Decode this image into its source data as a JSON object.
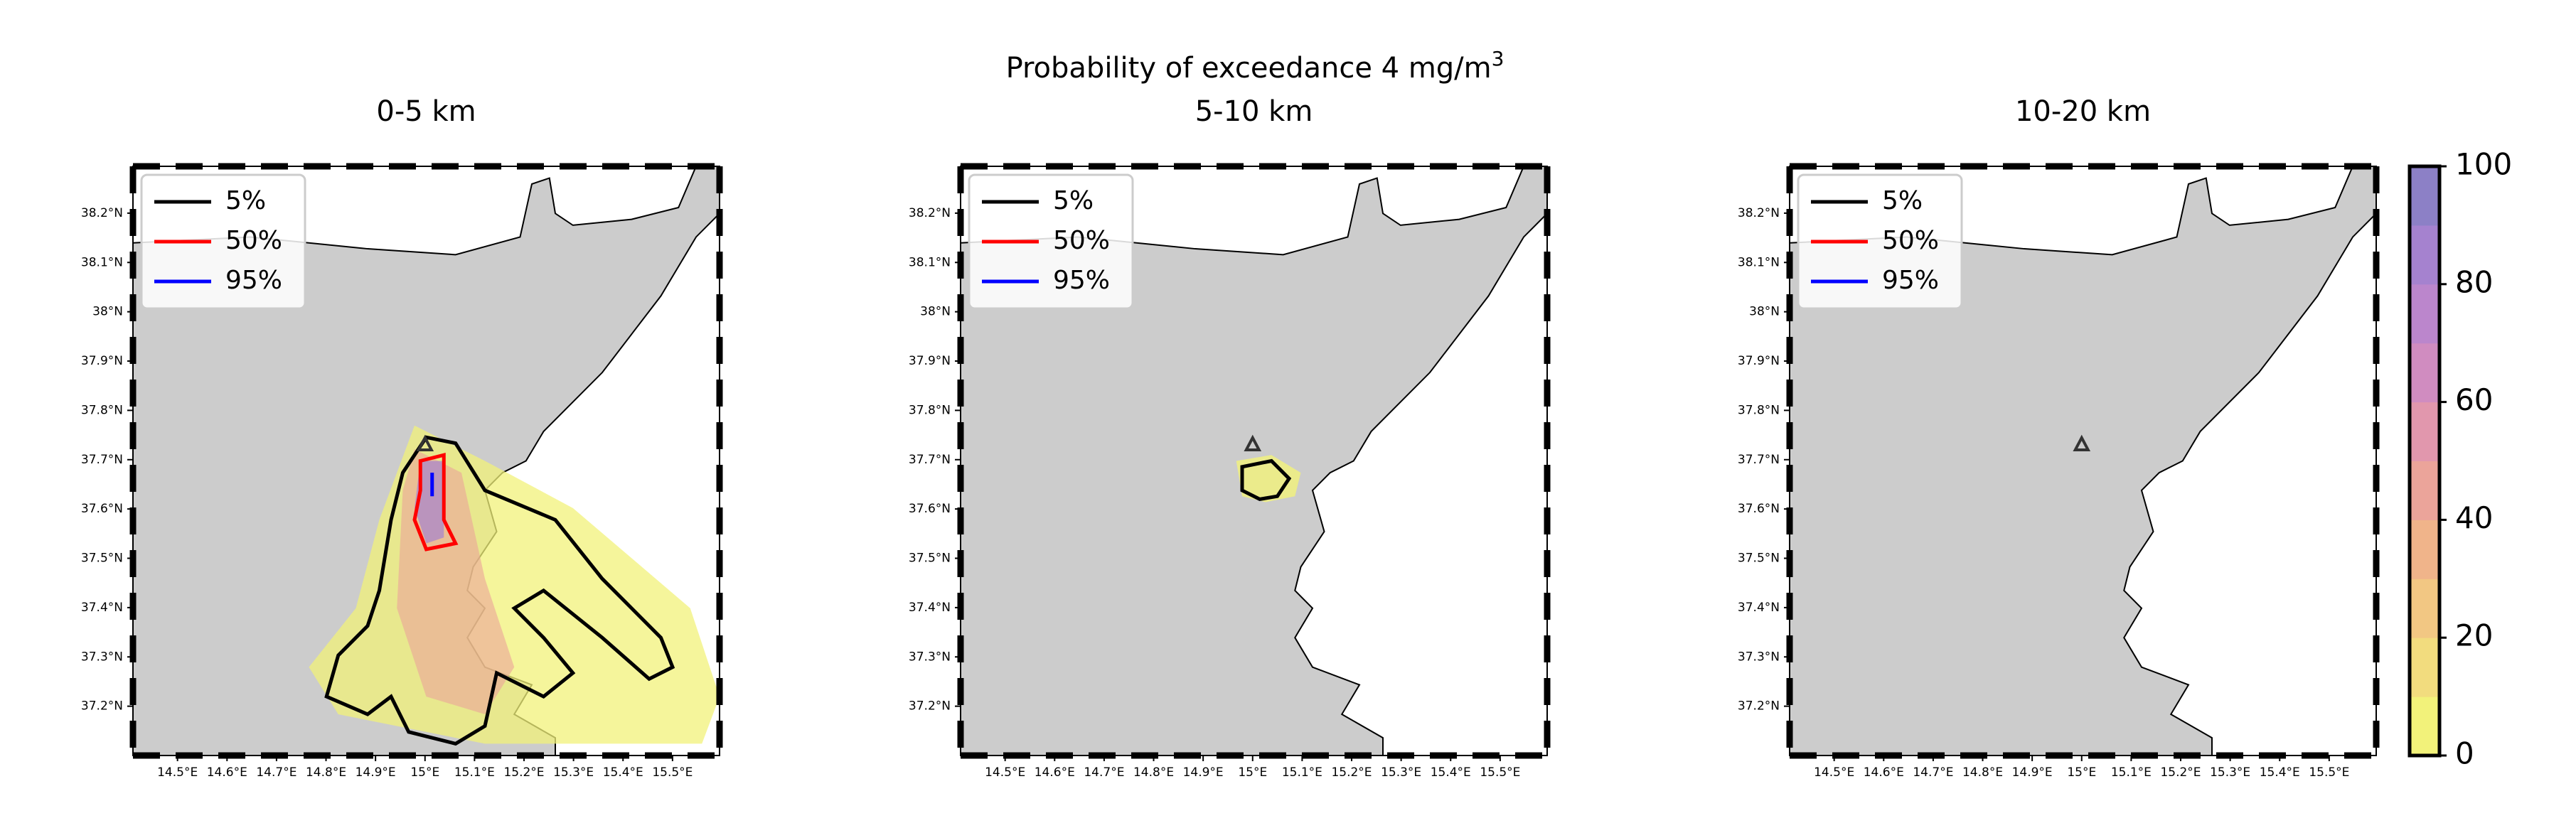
{
  "title": {
    "text": "Probability of exceedance 4 mg/m",
    "sup": "3"
  },
  "panels": [
    {
      "title": "0-5 km"
    },
    {
      "title": "5-10 km"
    },
    {
      "title": "10-20 km"
    }
  ],
  "lon_lim": [
    14.41,
    15.595
  ],
  "lat_lim": [
    37.1,
    38.295
  ],
  "lat_ticks": [
    {
      "value": 38.2,
      "label": "38.2°N"
    },
    {
      "value": 38.1,
      "label": "38.1°N"
    },
    {
      "value": 38.0,
      "label": "38°N"
    },
    {
      "value": 37.9,
      "label": "37.9°N"
    },
    {
      "value": 37.8,
      "label": "37.8°N"
    },
    {
      "value": 37.7,
      "label": "37.7°N"
    },
    {
      "value": 37.6,
      "label": "37.6°N"
    },
    {
      "value": 37.5,
      "label": "37.5°N"
    },
    {
      "value": 37.4,
      "label": "37.4°N"
    },
    {
      "value": 37.3,
      "label": "37.3°N"
    },
    {
      "value": 37.2,
      "label": "37.2°N"
    }
  ],
  "lon_ticks": [
    {
      "value": 14.5,
      "label": "14.5°E"
    },
    {
      "value": 14.6,
      "label": "14.6°E"
    },
    {
      "value": 14.7,
      "label": "14.7°E"
    },
    {
      "value": 14.8,
      "label": "14.8°E"
    },
    {
      "value": 14.9,
      "label": "14.9°E"
    },
    {
      "value": 15.0,
      "label": "15°E"
    },
    {
      "value": 15.1,
      "label": "15.1°E"
    },
    {
      "value": 15.2,
      "label": "15.2°E"
    },
    {
      "value": 15.3,
      "label": "15.3°E"
    },
    {
      "value": 15.4,
      "label": "15.4°E"
    },
    {
      "value": 15.5,
      "label": "15.5°E"
    }
  ],
  "legend": [
    {
      "label": "5%",
      "color": "#000000"
    },
    {
      "label": "50%",
      "color": "#ff0000"
    },
    {
      "label": "95%",
      "color": "#0000ff"
    }
  ],
  "colorbar": {
    "lim": [
      0,
      100
    ],
    "ticks": [
      0,
      20,
      40,
      60,
      80,
      100
    ],
    "colors": [
      "#f2f27a",
      "#f2dc7e",
      "#f2c783",
      "#f0b48a",
      "#eba49a",
      "#e197ad",
      "#d08cc0",
      "#bb86cc",
      "#a582cf",
      "#8c80c6"
    ]
  },
  "vent": {
    "lon": 15.0,
    "lat": 37.73
  }
}
